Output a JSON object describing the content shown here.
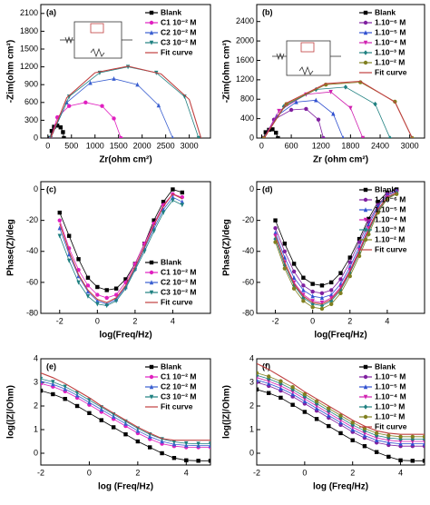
{
  "chart_data": [
    {
      "type": "line",
      "label": "(a)",
      "x_label": "Zr(ohm cm²)",
      "y_label": "-Zim(ohm cm²)",
      "xlim": [
        -150,
        3450
      ],
      "ylim": [
        0,
        2250
      ],
      "xticks": [
        0,
        500,
        1000,
        1500,
        2000,
        2500,
        3000
      ],
      "yticks": [
        0,
        300,
        600,
        900,
        1200,
        1500,
        1800,
        2100
      ],
      "legend": "upper right",
      "series": [
        {
          "name": "Blank",
          "color": "#000000",
          "marker": "square",
          "x": [
            50,
            80,
            130,
            200,
            270,
            320,
            340
          ],
          "values": [
            0,
            120,
            190,
            210,
            180,
            100,
            0
          ]
        },
        {
          "name": "C1 10⁻² M",
          "color": "#e020c0",
          "marker": "circle",
          "x": [
            60,
            200,
            450,
            800,
            1150,
            1400,
            1550
          ],
          "values": [
            0,
            350,
            540,
            600,
            540,
            330,
            0
          ]
        },
        {
          "name": "C2 10⁻² M",
          "color": "#3a5fd0",
          "marker": "triangle",
          "x": [
            60,
            400,
            900,
            1400,
            1900,
            2350,
            2650
          ],
          "values": [
            0,
            600,
            930,
            1000,
            900,
            550,
            0
          ]
        },
        {
          "name": "C3 10⁻² M",
          "color": "#1f8080",
          "marker": "tri-down",
          "x": [
            60,
            450,
            1100,
            1700,
            2300,
            2900,
            3200
          ],
          "values": [
            0,
            700,
            1100,
            1200,
            1100,
            700,
            0
          ]
        },
        {
          "name": "Fit curve",
          "color": "#c04040",
          "marker": "none",
          "x": [
            60,
            400,
            1000,
            1700,
            2400,
            3000,
            3250
          ],
          "values": [
            0,
            680,
            1100,
            1210,
            1080,
            650,
            0
          ]
        }
      ]
    },
    {
      "type": "line",
      "label": "(b)",
      "x_label": "Zr (ohm cm²)",
      "y_label": "-Zim(ohm cm²)",
      "xlim": [
        -100,
        3300
      ],
      "ylim": [
        0,
        2750
      ],
      "xticks": [
        0,
        600,
        1200,
        1800,
        2400,
        3000
      ],
      "yticks": [
        0,
        400,
        800,
        1200,
        1600,
        2000,
        2400
      ],
      "legend": "upper right",
      "series": [
        {
          "name": "Blank",
          "color": "#000000",
          "marker": "square",
          "x": [
            40,
            80,
            150,
            220,
            290,
            330
          ],
          "values": [
            0,
            120,
            170,
            180,
            110,
            0
          ]
        },
        {
          "name": "1.10⁻⁶ M",
          "color": "#8020a0",
          "marker": "circle",
          "x": [
            50,
            250,
            600,
            900,
            1150,
            1250
          ],
          "values": [
            0,
            380,
            580,
            600,
            380,
            0
          ]
        },
        {
          "name": "1.10⁻⁵ M",
          "color": "#3050d0",
          "marker": "triangle",
          "x": [
            50,
            300,
            700,
            1100,
            1450,
            1650
          ],
          "values": [
            0,
            450,
            740,
            780,
            500,
            0
          ]
        },
        {
          "name": "1.10⁻⁴ M",
          "color": "#d020b0",
          "marker": "tri-down",
          "x": [
            50,
            350,
            900,
            1400,
            1800,
            2050
          ],
          "values": [
            0,
            560,
            900,
            950,
            620,
            0
          ]
        },
        {
          "name": "1.10⁻³ M",
          "color": "#1f8080",
          "marker": "diamond",
          "x": [
            50,
            450,
            1100,
            1700,
            2300,
            2600
          ],
          "values": [
            0,
            650,
            1000,
            1050,
            700,
            0
          ]
        },
        {
          "name": "1.10⁻² M",
          "color": "#808020",
          "marker": "circle",
          "x": [
            50,
            500,
            1300,
            2000,
            2700,
            3050
          ],
          "values": [
            0,
            700,
            1100,
            1150,
            750,
            0
          ]
        },
        {
          "name": "Fit curve",
          "color": "#c04040",
          "marker": "none",
          "x": [
            50,
            500,
            1300,
            2000,
            2700,
            3050
          ],
          "values": [
            0,
            720,
            1120,
            1170,
            740,
            0
          ]
        }
      ]
    },
    {
      "type": "line",
      "label": "(c)",
      "x_label": "log(Freq/Hz)",
      "y_label": "Phase(Z)/deg",
      "xlim": [
        -3,
        6
      ],
      "ylim": [
        -80,
        5
      ],
      "xticks": [
        -2,
        0,
        2,
        4
      ],
      "yticks": [
        0,
        -20,
        -40,
        -60,
        -80
      ],
      "legend": "lower right",
      "x": [
        -2,
        -1.5,
        -1,
        -0.5,
        0,
        0.5,
        1,
        1.5,
        2,
        2.5,
        3,
        3.5,
        4,
        4.5
      ],
      "series": [
        {
          "name": "Blank",
          "color": "#000000",
          "marker": "square",
          "values": [
            -15,
            -30,
            -45,
            -57,
            -63,
            -65,
            -64,
            -58,
            -48,
            -35,
            -20,
            -8,
            0,
            -2
          ]
        },
        {
          "name": "C1 10⁻² M",
          "color": "#e020c0",
          "marker": "circle",
          "values": [
            -20,
            -38,
            -52,
            -62,
            -68,
            -70,
            -68,
            -60,
            -48,
            -35,
            -22,
            -10,
            -3,
            -5
          ]
        },
        {
          "name": "C2 10⁻² M",
          "color": "#3a5fd0",
          "marker": "triangle",
          "values": [
            -25,
            -42,
            -56,
            -66,
            -72,
            -74,
            -71,
            -63,
            -51,
            -38,
            -25,
            -13,
            -5,
            -8
          ]
        },
        {
          "name": "C3 10⁻² M",
          "color": "#1f8080",
          "marker": "tri-down",
          "values": [
            -30,
            -46,
            -60,
            -69,
            -74,
            -75,
            -72,
            -64,
            -52,
            -40,
            -27,
            -15,
            -7,
            -10
          ]
        },
        {
          "name": "Fit curve",
          "color": "#c04040",
          "marker": "none",
          "values": [
            -22,
            -40,
            -55,
            -65,
            -71,
            -73,
            -70,
            -62,
            -50,
            -37,
            -23,
            -11,
            -3,
            -6
          ]
        }
      ]
    },
    {
      "type": "line",
      "label": "(d)",
      "x_label": "log(Freq/Hz)",
      "y_label": "Phase(Z)/deg",
      "xlim": [
        -3,
        6
      ],
      "ylim": [
        -80,
        5
      ],
      "xticks": [
        -2,
        0,
        2,
        4
      ],
      "yticks": [
        0,
        -20,
        -40,
        -60,
        -80
      ],
      "legend": "upper right",
      "x": [
        -2,
        -1.5,
        -1,
        -0.5,
        0,
        0.5,
        1,
        1.5,
        2,
        2.5,
        3,
        3.5,
        4,
        4.5
      ],
      "series": [
        {
          "name": "Blank",
          "color": "#000000",
          "marker": "square",
          "values": [
            -20,
            -35,
            -48,
            -57,
            -61,
            -62,
            -60,
            -54,
            -44,
            -32,
            -19,
            -8,
            -2,
            0
          ]
        },
        {
          "name": "1.10⁻⁶ M",
          "color": "#8020a0",
          "marker": "circle",
          "values": [
            -25,
            -40,
            -53,
            -62,
            -66,
            -67,
            -65,
            -58,
            -47,
            -34,
            -21,
            -10,
            -3,
            -1
          ]
        },
        {
          "name": "1.10⁻⁵ M",
          "color": "#3050d0",
          "marker": "triangle",
          "values": [
            -28,
            -44,
            -57,
            -65,
            -69,
            -70,
            -68,
            -61,
            -50,
            -37,
            -23,
            -11,
            -4,
            -1
          ]
        },
        {
          "name": "1.10⁻⁴ M",
          "color": "#d020b0",
          "marker": "tri-down",
          "values": [
            -30,
            -47,
            -60,
            -68,
            -72,
            -73,
            -70,
            -63,
            -52,
            -39,
            -25,
            -13,
            -5,
            -2
          ]
        },
        {
          "name": "1.10⁻³ M",
          "color": "#1f8080",
          "marker": "diamond",
          "values": [
            -32,
            -49,
            -62,
            -70,
            -74,
            -75,
            -72,
            -65,
            -54,
            -41,
            -27,
            -14,
            -6,
            -2
          ]
        },
        {
          "name": "1.10⁻² M",
          "color": "#808020",
          "marker": "circle",
          "values": [
            -34,
            -51,
            -64,
            -72,
            -76,
            -77,
            -74,
            -67,
            -56,
            -43,
            -29,
            -15,
            -6,
            -3
          ]
        },
        {
          "name": "Fit curve",
          "color": "#c04040",
          "marker": "none",
          "values": [
            -30,
            -47,
            -61,
            -69,
            -73,
            -74,
            -71,
            -64,
            -53,
            -40,
            -26,
            -13,
            -5,
            -2
          ]
        }
      ]
    },
    {
      "type": "line",
      "label": "(e)",
      "x_label": "log (Freq/Hz)",
      "y_label": "log(|Z|/Ohm)",
      "xlim": [
        -2,
        5
      ],
      "ylim": [
        -0.5,
        4
      ],
      "xticks": [
        -2,
        0,
        2,
        4
      ],
      "yticks": [
        0,
        1,
        2,
        3,
        4
      ],
      "legend": "upper right",
      "x": [
        -2,
        -1.5,
        -1,
        -0.5,
        0,
        0.5,
        1,
        1.5,
        2,
        2.5,
        3,
        3.5,
        4,
        4.5,
        5
      ],
      "series": [
        {
          "name": "Blank",
          "color": "#000000",
          "marker": "square",
          "values": [
            2.65,
            2.5,
            2.3,
            2.0,
            1.7,
            1.4,
            1.1,
            0.8,
            0.5,
            0.25,
            0.0,
            -0.2,
            -0.3,
            -0.32,
            -0.32
          ]
        },
        {
          "name": "C1 10⁻² M",
          "color": "#e020c0",
          "marker": "circle",
          "values": [
            2.95,
            2.82,
            2.62,
            2.35,
            2.05,
            1.75,
            1.45,
            1.15,
            0.85,
            0.6,
            0.4,
            0.3,
            0.25,
            0.25,
            0.25
          ]
        },
        {
          "name": "C2 10⁻² M",
          "color": "#3a5fd0",
          "marker": "triangle",
          "values": [
            3.05,
            2.92,
            2.72,
            2.45,
            2.15,
            1.85,
            1.55,
            1.25,
            0.95,
            0.7,
            0.5,
            0.38,
            0.33,
            0.32,
            0.32
          ]
        },
        {
          "name": "C3 10⁻² M",
          "color": "#1f8080",
          "marker": "tri-down",
          "values": [
            3.15,
            3.02,
            2.82,
            2.55,
            2.25,
            1.95,
            1.65,
            1.35,
            1.05,
            0.8,
            0.6,
            0.48,
            0.42,
            0.4,
            0.4
          ]
        },
        {
          "name": "Fit curve",
          "color": "#c04040",
          "marker": "none",
          "values": [
            3.4,
            3.2,
            2.95,
            2.65,
            2.35,
            2.0,
            1.7,
            1.4,
            1.1,
            0.85,
            0.62,
            0.55,
            0.55,
            0.55,
            0.55
          ]
        }
      ]
    },
    {
      "type": "line",
      "label": "(f)",
      "x_label": "log (Freq/Hz)",
      "y_label": "log(|Z|/Ohm)",
      "xlim": [
        -2,
        5
      ],
      "ylim": [
        -0.5,
        4
      ],
      "xticks": [
        -2,
        0,
        2,
        4
      ],
      "yticks": [
        0,
        1,
        2,
        3,
        4
      ],
      "legend": "upper right",
      "x": [
        -2,
        -1.5,
        -1,
        -0.5,
        0,
        0.5,
        1,
        1.5,
        2,
        2.5,
        3,
        3.5,
        4,
        4.5,
        5
      ],
      "series": [
        {
          "name": "Blank",
          "color": "#000000",
          "marker": "square",
          "values": [
            2.7,
            2.55,
            2.35,
            2.05,
            1.75,
            1.45,
            1.15,
            0.85,
            0.55,
            0.3,
            0.05,
            -0.15,
            -0.3,
            -0.32,
            -0.32
          ]
        },
        {
          "name": "1.10⁻⁶ M",
          "color": "#8020a0",
          "marker": "circle",
          "values": [
            3.0,
            2.85,
            2.65,
            2.4,
            2.1,
            1.8,
            1.5,
            1.2,
            0.9,
            0.65,
            0.45,
            0.35,
            0.3,
            0.3,
            0.3
          ]
        },
        {
          "name": "1.10⁻⁵ M",
          "color": "#3050d0",
          "marker": "triangle",
          "values": [
            3.1,
            2.95,
            2.75,
            2.5,
            2.2,
            1.9,
            1.6,
            1.3,
            1.0,
            0.75,
            0.55,
            0.45,
            0.4,
            0.4,
            0.4
          ]
        },
        {
          "name": "1.10⁻⁴ M",
          "color": "#d020b0",
          "marker": "tri-down",
          "values": [
            3.2,
            3.05,
            2.85,
            2.6,
            2.3,
            2.0,
            1.7,
            1.4,
            1.1,
            0.85,
            0.65,
            0.55,
            0.5,
            0.5,
            0.5
          ]
        },
        {
          "name": "1.10⁻³ M",
          "color": "#1f8080",
          "marker": "diamond",
          "values": [
            3.3,
            3.15,
            2.95,
            2.7,
            2.4,
            2.1,
            1.8,
            1.5,
            1.2,
            0.95,
            0.75,
            0.65,
            0.6,
            0.6,
            0.6
          ]
        },
        {
          "name": "1.10⁻² M",
          "color": "#808020",
          "marker": "circle",
          "values": [
            3.4,
            3.25,
            3.05,
            2.8,
            2.5,
            2.2,
            1.9,
            1.6,
            1.3,
            1.05,
            0.85,
            0.75,
            0.7,
            0.7,
            0.7
          ]
        },
        {
          "name": "Fit curve",
          "color": "#c04040",
          "marker": "none",
          "values": [
            3.8,
            3.55,
            3.25,
            2.95,
            2.6,
            2.3,
            2.0,
            1.7,
            1.4,
            1.15,
            0.95,
            0.85,
            0.8,
            0.8,
            0.8
          ]
        }
      ]
    }
  ]
}
